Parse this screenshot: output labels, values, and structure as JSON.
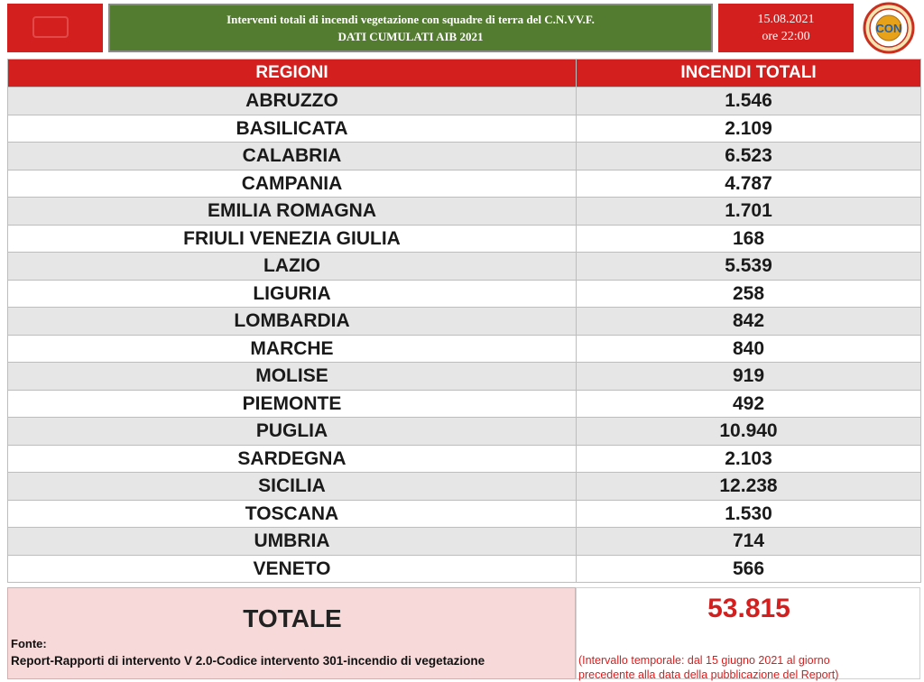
{
  "header": {
    "title_line1": "Interventi totali di incendi vegetazione con squadre di terra del C.N.VV.F.",
    "title_line2": "DATI CUMULATI  AIB 2021",
    "date": "15.08.2021",
    "time": "ore 22:00"
  },
  "table": {
    "col_region": "REGIONI",
    "col_total": "INCENDI  TOTALI",
    "rows": [
      {
        "region": "ABRUZZO",
        "value": "1.546"
      },
      {
        "region": "BASILICATA",
        "value": "2.109"
      },
      {
        "region": "CALABRIA",
        "value": "6.523"
      },
      {
        "region": "CAMPANIA",
        "value": "4.787"
      },
      {
        "region": "EMILIA ROMAGNA",
        "value": "1.701"
      },
      {
        "region": "FRIULI VENEZIA GIULIA",
        "value": "168"
      },
      {
        "region": "LAZIO",
        "value": "5.539"
      },
      {
        "region": "LIGURIA",
        "value": "258"
      },
      {
        "region": "LOMBARDIA",
        "value": "842"
      },
      {
        "region": "MARCHE",
        "value": "840"
      },
      {
        "region": "MOLISE",
        "value": "919"
      },
      {
        "region": "PIEMONTE",
        "value": "492"
      },
      {
        "region": "PUGLIA",
        "value": "10.940"
      },
      {
        "region": "SARDEGNA",
        "value": "2.103"
      },
      {
        "region": "SICILIA",
        "value": "12.238"
      },
      {
        "region": "TOSCANA",
        "value": "1.530"
      },
      {
        "region": "UMBRIA",
        "value": "714"
      },
      {
        "region": "VENETO",
        "value": "566"
      }
    ]
  },
  "totals": {
    "label": "TOTALE",
    "value": "53.815",
    "fonte_label": "Fonte:",
    "fonte_text": "Report-Rapporti di intervento V 2.0-Codice intervento 301-incendio di vegetazione",
    "interval_line1": "(Intervallo temporale: dal 15 giugno 2021 al giorno",
    "interval_line2": "precedente alla data della pubblicazione del Report)"
  },
  "logo": {
    "text": "CON"
  },
  "colors": {
    "red": "#d41f1f",
    "green": "#547c31",
    "row_alt": "#e6e6e6",
    "total_bg": "#f7d9d9"
  }
}
